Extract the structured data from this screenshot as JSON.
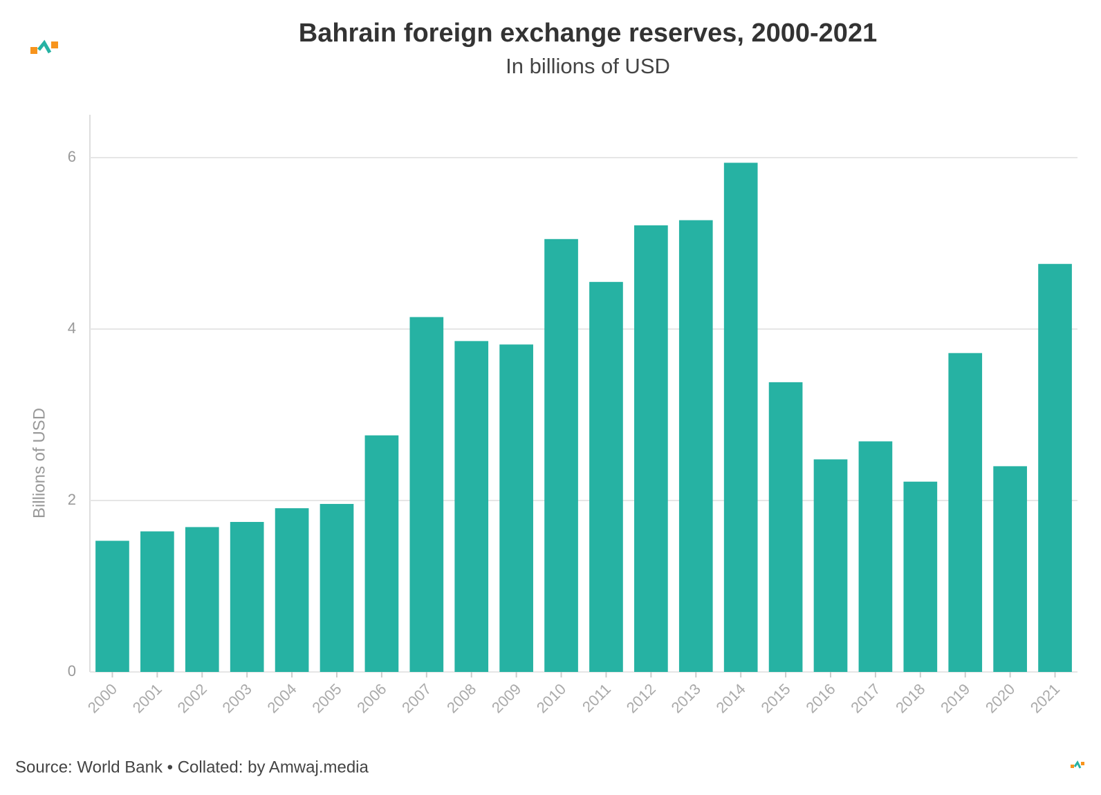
{
  "chart_data": {
    "type": "bar",
    "title": "Bahrain foreign exchange reserves, 2000-2021",
    "subtitle": "In billions of USD",
    "y_label": "Billions of USD",
    "source": "Source: World Bank • Collated: by Amwaj.media",
    "categories": [
      "2000",
      "2001",
      "2002",
      "2003",
      "2004",
      "2005",
      "2006",
      "2007",
      "2008",
      "2009",
      "2010",
      "2011",
      "2012",
      "2013",
      "2014",
      "2015",
      "2016",
      "2017",
      "2018",
      "2019",
      "2020",
      "2021"
    ],
    "values": [
      1.53,
      1.64,
      1.69,
      1.75,
      1.91,
      1.96,
      2.76,
      4.14,
      3.86,
      3.82,
      5.05,
      4.55,
      5.21,
      5.27,
      5.94,
      3.38,
      2.48,
      2.69,
      2.22,
      3.72,
      2.4,
      4.76
    ],
    "color": "#26b2a3",
    "ylim": [
      0,
      6.5
    ],
    "yticks": [
      0,
      2,
      4,
      6
    ],
    "grid": true
  }
}
